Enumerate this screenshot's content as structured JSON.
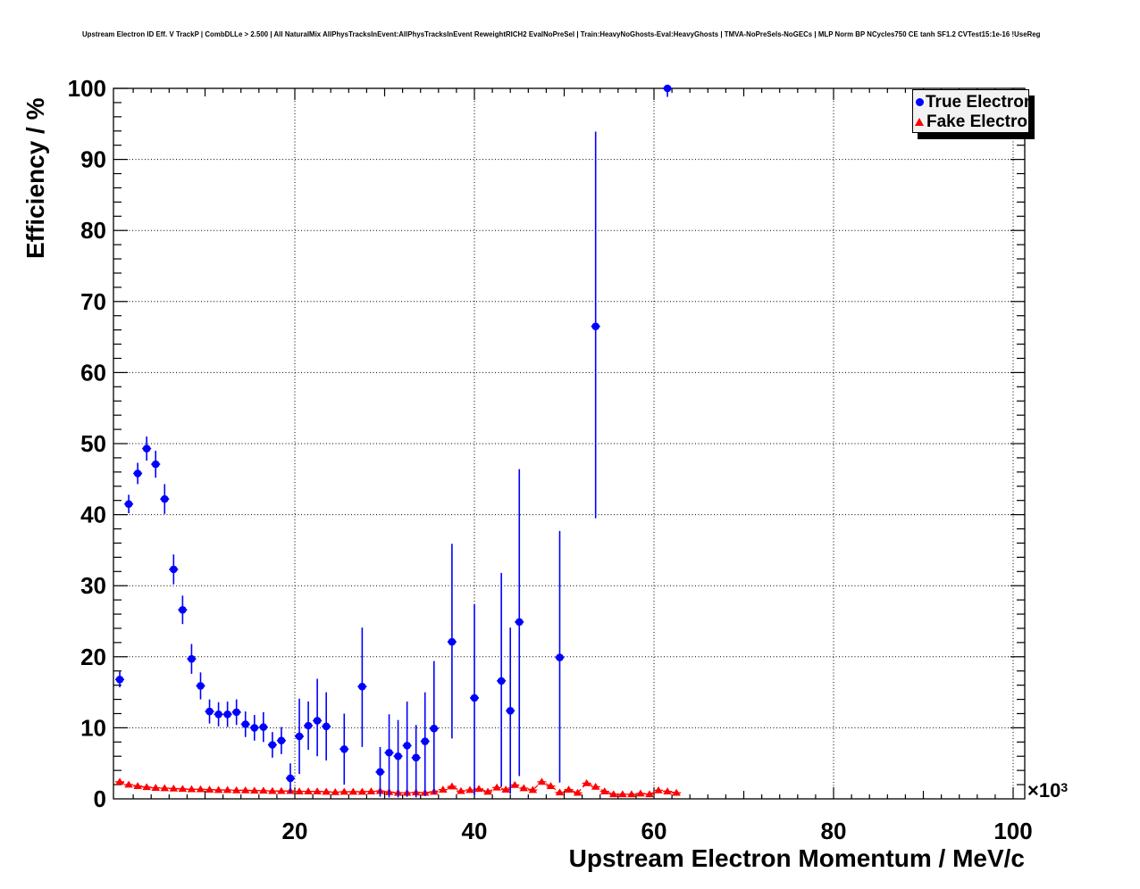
{
  "header": {
    "title": "Upstream Electron ID Eff. V TrackP | CombDLLe > 2.500 | All NaturalMix AllPhysTracksInEvent:AllPhysTracksInEvent ReweightRICH2 EvalNoPreSel | Train:HeavyNoGhosts-Eval:HeavyGhosts | TMVA-NoPreSels-NoGECs | MLP Norm BP NCycles750 CE tanh SF1.2 CVTest15:1e-16 !UseReg"
  },
  "legend": {
    "entries": [
      {
        "label": "True Electron",
        "marker": "circle",
        "color": "#0000ff"
      },
      {
        "label": "Fake Electron",
        "marker": "triangle",
        "color": "#ff0000"
      }
    ]
  },
  "colors": {
    "true_electron": "#0000ff",
    "fake_electron": "#ff0000",
    "frame": "#000000",
    "grid": "#000000",
    "legend_bg": "#f2f2f2"
  },
  "chart_data": {
    "type": "scatter",
    "title": "Upstream Electron ID Eff. V TrackP | CombDLLe > 2.500 | All NaturalMix AllPhysTracksInEvent:AllPhysTracksInEvent ReweightRICH2 EvalNoPreSel | Train:HeavyNoGhosts-Eval:HeavyGhosts | TMVA-NoPreSels-NoGECs | MLP Norm BP NCycles750 CE tanh SF1.2 CVTest15:1e-16 !UseReg",
    "xlabel": "Upstream Electron Momentum / MeV/c",
    "ylabel": "Efficiency / %",
    "x_multiplier": {
      "mantissa": "×10",
      "exponent": "3"
    },
    "x_unit_scale": "x values are in units of 1000 MeV/c",
    "xlim": [
      0,
      101.3
    ],
    "ylim": [
      0,
      100
    ],
    "x_ticks": [
      20,
      40,
      60,
      80,
      100
    ],
    "y_ticks": [
      0,
      10,
      20,
      30,
      40,
      50,
      60,
      70,
      80,
      90,
      100
    ],
    "grid": true,
    "legend_position": "top-right",
    "series": [
      {
        "name": "True Electron",
        "marker": "circle",
        "color": "#0000ff",
        "xerr_halfwidth": 0.5,
        "points_format": [
          "x",
          "y",
          "y_err_low",
          "y_err_high"
        ],
        "points": [
          [
            0.5,
            16.8,
            15.7,
            17.9
          ],
          [
            1.5,
            41.5,
            40.2,
            42.8
          ],
          [
            2.5,
            45.8,
            44.3,
            47.3
          ],
          [
            3.5,
            49.3,
            47.6,
            51.0
          ],
          [
            4.5,
            47.1,
            45.2,
            49.0
          ],
          [
            5.5,
            42.2,
            40.1,
            44.3
          ],
          [
            6.5,
            32.3,
            30.2,
            34.4
          ],
          [
            7.5,
            26.6,
            24.6,
            28.6
          ],
          [
            8.5,
            19.7,
            17.6,
            21.8
          ],
          [
            9.5,
            15.9,
            14.0,
            17.8
          ],
          [
            10.5,
            12.3,
            10.6,
            14.0
          ],
          [
            11.5,
            11.9,
            10.2,
            13.6
          ],
          [
            12.5,
            11.9,
            10.1,
            13.7
          ],
          [
            13.5,
            12.2,
            10.4,
            14.0
          ],
          [
            14.5,
            10.5,
            8.7,
            12.3
          ],
          [
            15.5,
            10.0,
            8.2,
            11.8
          ],
          [
            16.5,
            10.1,
            8.0,
            12.2
          ],
          [
            17.5,
            7.6,
            5.8,
            9.4
          ],
          [
            18.5,
            8.2,
            6.3,
            10.1
          ],
          [
            19.5,
            2.9,
            0.8,
            5.0
          ],
          [
            20.5,
            8.8,
            3.5,
            14.1
          ],
          [
            21.5,
            10.3,
            6.9,
            13.7
          ],
          [
            22.5,
            11.0,
            6.0,
            16.9
          ],
          [
            23.5,
            10.2,
            5.4,
            15.0
          ],
          [
            25.5,
            7.0,
            2.0,
            12.0
          ],
          [
            27.5,
            15.8,
            7.3,
            24.1
          ],
          [
            29.5,
            3.8,
            0.3,
            7.3
          ],
          [
            30.5,
            6.5,
            0.2,
            11.9
          ],
          [
            31.5,
            6.0,
            0.2,
            11.1
          ],
          [
            32.5,
            7.5,
            0.3,
            13.7
          ],
          [
            33.5,
            5.8,
            0.2,
            10.4
          ],
          [
            34.5,
            8.1,
            0.4,
            15.0
          ],
          [
            35.5,
            9.9,
            0.7,
            19.4
          ],
          [
            37.5,
            22.1,
            8.5,
            35.9
          ],
          [
            40.0,
            14.2,
            0.5,
            27.4
          ],
          [
            43.0,
            16.6,
            1.7,
            31.8
          ],
          [
            44.0,
            12.4,
            0.7,
            24.1
          ],
          [
            45.0,
            24.9,
            3.2,
            46.4
          ],
          [
            49.5,
            19.9,
            2.3,
            37.7
          ],
          [
            53.5,
            66.5,
            39.5,
            93.9
          ],
          [
            61.5,
            100.0,
            98.8,
            100.0
          ]
        ]
      },
      {
        "name": "Fake Electron",
        "marker": "triangle",
        "color": "#ff0000",
        "line_style": "dashed",
        "xerr_halfwidth": 0.5,
        "x": [
          0.5,
          1.5,
          2.5,
          3.5,
          4.5,
          5.5,
          6.5,
          7.5,
          8.5,
          9.5,
          10.5,
          11.5,
          12.5,
          13.5,
          14.5,
          15.5,
          16.5,
          17.5,
          18.5,
          19.5,
          20.5,
          21.5,
          22.5,
          23.5,
          24.5,
          25.5,
          26.5,
          27.5,
          28.5,
          29.5,
          30.5,
          31.5,
          32.5,
          33.5,
          34.5,
          35.5,
          36.5,
          37.5,
          38.5,
          39.5,
          40.5,
          41.5,
          42.5,
          43.5,
          44.5,
          45.5,
          46.5,
          47.5,
          48.5,
          49.5,
          50.5,
          51.5,
          52.5,
          53.5,
          54.5,
          55.5,
          56.5,
          57.5,
          58.5,
          59.5,
          60.5,
          61.5,
          62.5
        ],
        "y": [
          2.4,
          2.0,
          1.8,
          1.65,
          1.55,
          1.5,
          1.45,
          1.4,
          1.35,
          1.35,
          1.3,
          1.25,
          1.25,
          1.2,
          1.2,
          1.15,
          1.15,
          1.1,
          1.1,
          1.1,
          1.05,
          1.05,
          1.05,
          1.0,
          0.95,
          1.0,
          1.0,
          1.0,
          1.05,
          1.1,
          0.95,
          0.85,
          0.85,
          0.9,
          0.85,
          1.0,
          1.3,
          1.75,
          1.1,
          1.25,
          1.4,
          1.0,
          1.6,
          1.3,
          1.95,
          1.5,
          1.25,
          2.4,
          1.8,
          0.9,
          1.3,
          0.85,
          2.2,
          1.7,
          1.05,
          0.65,
          0.65,
          0.65,
          0.75,
          0.65,
          1.2,
          1.05,
          0.85
        ]
      }
    ]
  }
}
